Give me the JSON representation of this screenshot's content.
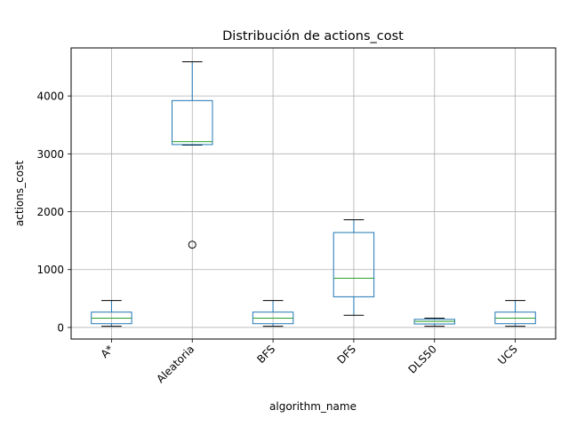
{
  "chart_data": {
    "type": "box",
    "title": "Distribución de actions_cost",
    "xlabel": "algorithm_name",
    "ylabel": "actions_cost",
    "categories": [
      "A*",
      "Aleatoria",
      "BFS",
      "DFS",
      "DLS50",
      "UCS"
    ],
    "boxes": [
      {
        "category": "A*",
        "whisker_low": 20,
        "q1": 65,
        "median": 160,
        "q3": 265,
        "whisker_high": 465,
        "outliers": []
      },
      {
        "category": "Aleatoria",
        "whisker_low": 3150,
        "q1": 3160,
        "median": 3210,
        "q3": 3920,
        "whisker_high": 4590,
        "outliers": [
          1430
        ]
      },
      {
        "category": "BFS",
        "whisker_low": 20,
        "q1": 65,
        "median": 160,
        "q3": 265,
        "whisker_high": 465,
        "outliers": []
      },
      {
        "category": "DFS",
        "whisker_low": 210,
        "q1": 530,
        "median": 850,
        "q3": 1640,
        "whisker_high": 1860,
        "outliers": []
      },
      {
        "category": "DLS50",
        "whisker_low": 20,
        "q1": 60,
        "median": 105,
        "q3": 140,
        "whisker_high": 160,
        "outliers": []
      },
      {
        "category": "UCS",
        "whisker_low": 20,
        "q1": 65,
        "median": 160,
        "q3": 265,
        "whisker_high": 465,
        "outliers": []
      }
    ],
    "y_ticks": [
      0,
      1000,
      2000,
      3000,
      4000
    ],
    "ylim": [
      -200,
      4830
    ],
    "grid": true,
    "x_tick_rotation_deg": 45,
    "colors": {
      "box": "#1f77b4",
      "median": "#2ca02c",
      "whisker_cap": "#000000",
      "grid": "#b0b0b0",
      "outlier": "#000000"
    }
  }
}
